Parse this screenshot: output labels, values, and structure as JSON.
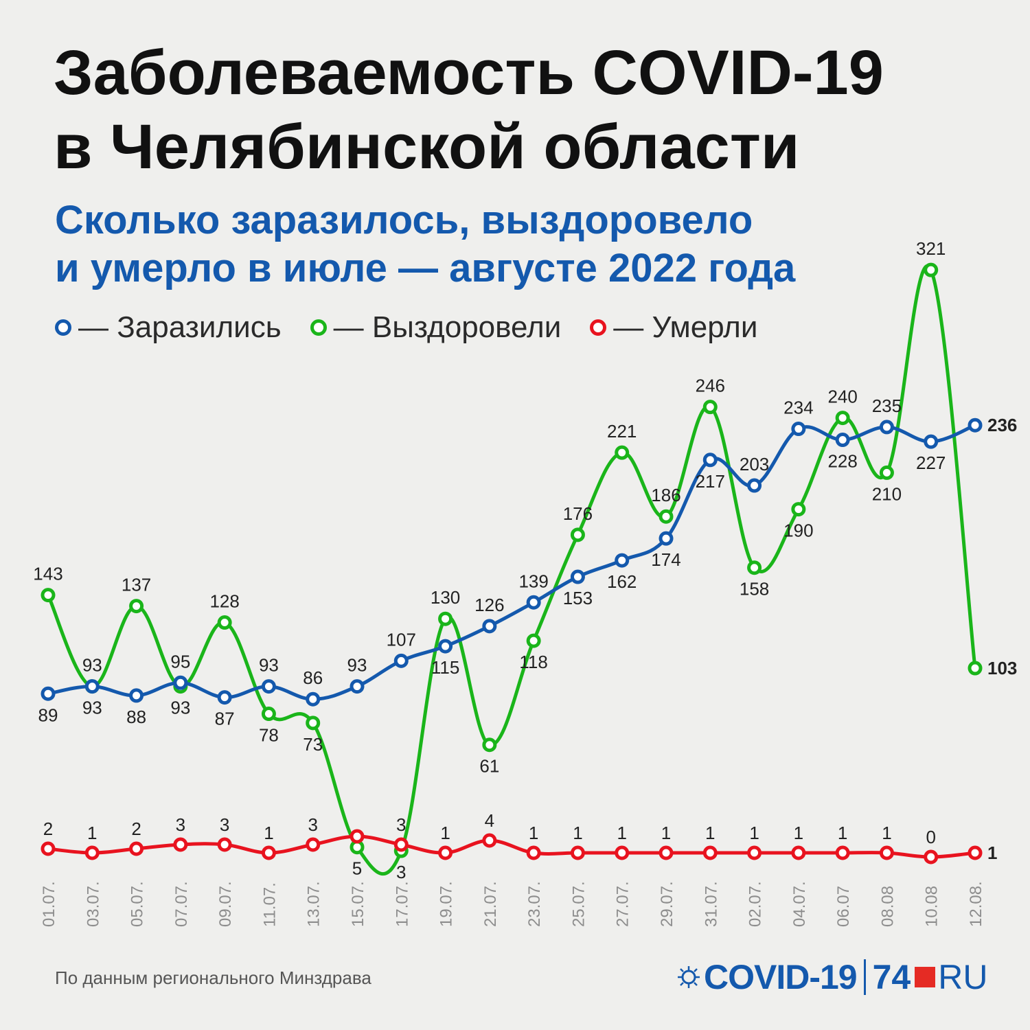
{
  "header": {
    "title": "Заболеваемость COVID-19\nв Челябинской области",
    "subtitle": "Сколько заразилось, выздоровело\nи умерло в июле — августе 2022 года"
  },
  "legend": {
    "items": [
      {
        "label": "— Заразились",
        "color": "#1459ad"
      },
      {
        "label": "— Выздоровели",
        "color": "#1ab51a"
      },
      {
        "label": "— Умерли",
        "color": "#e8131f"
      }
    ]
  },
  "chart_data": {
    "type": "line",
    "categories": [
      "01.07.",
      "03.07.",
      "05.07.",
      "07.07.",
      "09.07.",
      "11.07.",
      "13.07.",
      "15.07.",
      "17.07.",
      "19.07.",
      "21.07.",
      "23.07.",
      "25.07.",
      "27.07.",
      "29.07.",
      "31.07.",
      "02.07.",
      "04.07.",
      "06.07",
      "08.08",
      "10.08",
      "12.08."
    ],
    "series": [
      {
        "name": "Заразились",
        "color": "#1459ad",
        "values": [
          89,
          93,
          88,
          95,
          87,
          93,
          86,
          93,
          107,
          115,
          126,
          139,
          153,
          162,
          174,
          217,
          203,
          234,
          228,
          235,
          227,
          236
        ]
      },
      {
        "name": "Выздоровели",
        "color": "#1ab51a",
        "values": [
          143,
          93,
          137,
          93,
          128,
          78,
          73,
          5,
          3,
          130,
          61,
          118,
          176,
          221,
          186,
          246,
          158,
          190,
          240,
          210,
          321,
          103
        ]
      },
      {
        "name": "Умерли",
        "color": "#e8131f",
        "values": [
          2,
          1,
          2,
          3,
          3,
          1,
          3,
          5,
          3,
          1,
          4,
          1,
          1,
          1,
          1,
          1,
          1,
          1,
          1,
          1,
          0,
          1
        ]
      }
    ],
    "label_text": {
      "Заразились": [
        "89",
        "93",
        "88",
        "95",
        "87",
        "93",
        "86",
        "93",
        "107",
        "115",
        "126",
        "139",
        "153",
        "162",
        "174",
        "217",
        "203",
        "234",
        "228",
        "235",
        "227",
        "236"
      ],
      "Выздоровели": [
        "143",
        "93",
        "137",
        "93",
        "128",
        "78",
        "73",
        "5",
        "3",
        "130",
        "61",
        "118",
        "176",
        "221",
        "186",
        "246",
        "158",
        "190",
        "240",
        "210",
        "321",
        "103"
      ],
      "Умерли": [
        "2",
        "1",
        "2",
        "3",
        "3",
        "1",
        "3",
        "",
        "3",
        "1",
        "4",
        "1",
        "1",
        "1",
        "1",
        "1",
        "1",
        "1",
        "1",
        "1",
        "0",
        "1"
      ]
    },
    "grid": false
  },
  "footer": {
    "source": "По данным регионального Минздрава",
    "logo_covid": "COVID-19",
    "logo_num": "74",
    "logo_ru": "RU"
  }
}
